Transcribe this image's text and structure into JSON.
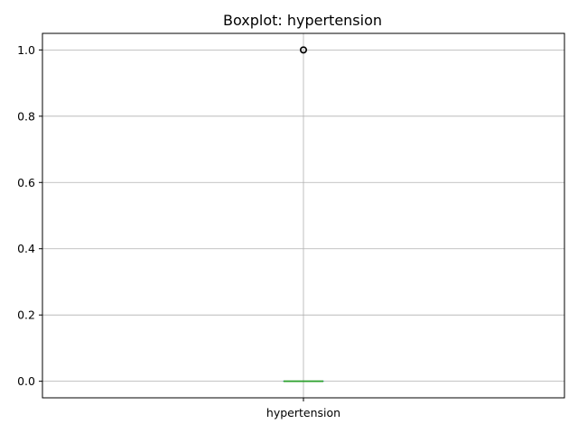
{
  "chart_data": {
    "type": "boxplot",
    "title": "Boxplot: hypertension",
    "xlabel": "",
    "ylabel": "",
    "categories": [
      "hypertension"
    ],
    "boxes": [
      {
        "name": "hypertension",
        "min": 0.0,
        "q1": 0.0,
        "median": 0.0,
        "q3": 0.0,
        "max": 0.0,
        "outliers": [
          1.0
        ]
      }
    ],
    "ylim": [
      -0.05,
      1.05
    ],
    "yticks": [
      0.0,
      0.2,
      0.4,
      0.6,
      0.8,
      1.0
    ],
    "ytick_labels": [
      "0.0",
      "0.2",
      "0.4",
      "0.6",
      "0.8",
      "1.0"
    ],
    "grid": true,
    "colors": {
      "box": "#1f77b4",
      "median": "#2ca02c",
      "whisker": "#2ca02c",
      "cap": "#2ca02c",
      "outlier": "#000000",
      "grid": "#b0b0b0",
      "axis": "#000000"
    }
  }
}
